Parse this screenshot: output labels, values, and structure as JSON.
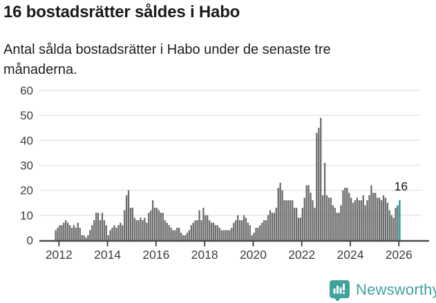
{
  "header": {
    "title": "16 bostadsrätter såldes i Habo",
    "subtitle_lines": {
      "0": "Antal sålda bostadsrätter i Habo under de senaste tre",
      "1": "månaderna."
    }
  },
  "chart_data": {
    "type": "bar",
    "title": "16 bostadsrätter såldes i Habo",
    "subtitle": "Antal sålda bostadsrätter i Habo under de senaste tre månaderna.",
    "x_start": "2011-11",
    "frequency": "monthly",
    "grid": true,
    "legend": false,
    "ylim": [
      0,
      60
    ],
    "yticks": [
      0,
      10,
      20,
      30,
      40,
      50,
      60
    ],
    "x_tick_years": [
      2012,
      2014,
      2016,
      2018,
      2020,
      2022,
      2024,
      2026
    ],
    "values": [
      4,
      5,
      6,
      6,
      7,
      8,
      7,
      6,
      5,
      6,
      5,
      7,
      5,
      2,
      2,
      1,
      2,
      4,
      6,
      8,
      11,
      11,
      8,
      11,
      8,
      6,
      2,
      4,
      5,
      6,
      5,
      6,
      7,
      6,
      12,
      18,
      20,
      13,
      13,
      9,
      8,
      8,
      9,
      8,
      9,
      7,
      11,
      12,
      16,
      13,
      13,
      12,
      11,
      11,
      8,
      7,
      6,
      5,
      4,
      4,
      5,
      5,
      3,
      2,
      2,
      3,
      4,
      6,
      7,
      8,
      8,
      12,
      8,
      13,
      10,
      10,
      8,
      7,
      7,
      6,
      6,
      5,
      4,
      4,
      4,
      4,
      4,
      5,
      7,
      8,
      10,
      8,
      8,
      10,
      9,
      7,
      6,
      2,
      3,
      5,
      5,
      6,
      7,
      8,
      8,
      10,
      12,
      11,
      11,
      13,
      21,
      23,
      20,
      16,
      16,
      16,
      16,
      16,
      13,
      13,
      9,
      9,
      13,
      17,
      22,
      22,
      19,
      16,
      13,
      43,
      45,
      49,
      18,
      31,
      18,
      17,
      17,
      14,
      13,
      11,
      11,
      14,
      20,
      21,
      21,
      19,
      17,
      15,
      16,
      17,
      16,
      16,
      18,
      14,
      16,
      18,
      22,
      19,
      19,
      17,
      17,
      16,
      18,
      17,
      15,
      12,
      10,
      9,
      13,
      14,
      16
    ],
    "highlight": {
      "index": 170,
      "value": 16,
      "label": "16"
    },
    "colors": {
      "bar": "#6b6b6e",
      "highlight": "#00a59c",
      "gridline": "#e1e1e1",
      "axis": "#4b4b4b",
      "tick_label": "#3c3c3c",
      "annotation": "#141414"
    }
  },
  "footer": {
    "brand": "Newsworthy",
    "brand_color": "#3fa39c",
    "logo_icon": "bar-chart-speech-bubble-icon"
  }
}
